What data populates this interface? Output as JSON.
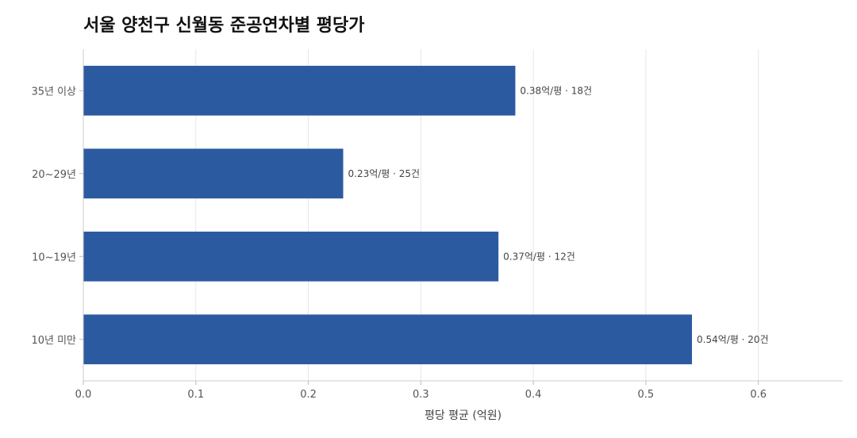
{
  "chart_data": {
    "type": "bar",
    "orientation": "horizontal",
    "title": "서울 양천구 신월동 준공연차별 평당가",
    "xlabel": "평당 평균 (억원)",
    "ylabel": "",
    "xlim": [
      0,
      0.675
    ],
    "x_ticks": [
      "0.0",
      "0.1",
      "0.2",
      "0.3",
      "0.4",
      "0.5",
      "0.6"
    ],
    "x_tick_values": [
      0,
      0.1,
      0.2,
      0.3,
      0.4,
      0.5,
      0.6
    ],
    "grid": "vertical",
    "bar_color": "#2c5aa0",
    "categories": [
      "35년 이상",
      "20~29년",
      "10~19년",
      "10년 미만"
    ],
    "values": [
      0.384,
      0.231,
      0.369,
      0.541
    ],
    "data_labels": [
      "0.38억/평 · 18건",
      "0.23억/평 · 25건",
      "0.37억/평 · 12건",
      "0.54억/평 · 20건"
    ]
  }
}
